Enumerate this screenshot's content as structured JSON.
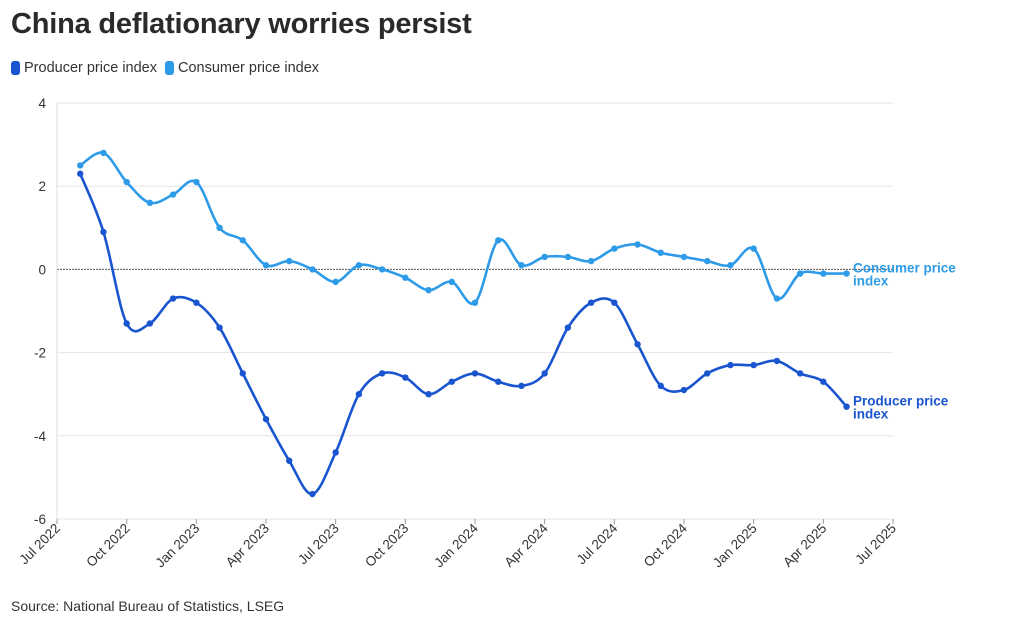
{
  "title": "China deflationary worries persist",
  "legend": [
    {
      "label": "Producer price index",
      "color": "#1a55d0"
    },
    {
      "label": "Consumer price index",
      "color": "#2e9be8"
    }
  ],
  "source": "Source: National Bureau of Statistics, LSEG",
  "chart_data": {
    "type": "line",
    "title": "China deflationary worries persist",
    "xlabel": "",
    "ylabel": "",
    "ylim": [
      -6,
      4
    ],
    "yticks": [
      4,
      2,
      0,
      -2,
      -4,
      -6
    ],
    "xlim": [
      "2022-07",
      "2025-07"
    ],
    "xticks": [
      "Jul 2022",
      "Oct 2022",
      "Jan 2023",
      "Apr 2023",
      "Jul 2023",
      "Oct 2023",
      "Jan 2024",
      "Apr 2024",
      "Jul 2024",
      "Oct 2024",
      "Jan 2025",
      "Apr 2025",
      "Jul 2025"
    ],
    "grid": true,
    "legend_position": "top-left",
    "x": [
      "2022-08",
      "2022-09",
      "2022-10",
      "2022-11",
      "2022-12",
      "2023-01",
      "2023-02",
      "2023-03",
      "2023-04",
      "2023-05",
      "2023-06",
      "2023-07",
      "2023-08",
      "2023-09",
      "2023-10",
      "2023-11",
      "2023-12",
      "2024-01",
      "2024-02",
      "2024-03",
      "2024-04",
      "2024-05",
      "2024-06",
      "2024-07",
      "2024-08",
      "2024-09",
      "2024-10",
      "2024-11",
      "2024-12",
      "2025-01",
      "2025-02",
      "2025-03",
      "2025-04",
      "2025-05"
    ],
    "series": [
      {
        "name": "Producer price index",
        "end_label": [
          "Producer price",
          "index"
        ],
        "color": "#1a55d0",
        "values": [
          2.3,
          0.9,
          -1.3,
          -1.3,
          -0.7,
          -0.8,
          -1.4,
          -2.5,
          -3.6,
          -4.6,
          -5.4,
          -4.4,
          -3.0,
          -2.5,
          -2.6,
          -3.0,
          -2.7,
          -2.5,
          -2.7,
          -2.8,
          -2.5,
          -1.4,
          -0.8,
          -0.8,
          -1.8,
          -2.8,
          -2.9,
          -2.5,
          -2.3,
          -2.3,
          -2.2,
          -2.5,
          -2.7,
          -3.3
        ]
      },
      {
        "name": "Consumer price index",
        "end_label": [
          "Consumer price",
          "index"
        ],
        "color": "#2e9be8",
        "values": [
          2.5,
          2.8,
          2.1,
          1.6,
          1.8,
          2.1,
          1.0,
          0.7,
          0.1,
          0.2,
          0.0,
          -0.3,
          0.1,
          0.0,
          -0.2,
          -0.5,
          -0.3,
          -0.8,
          0.7,
          0.1,
          0.3,
          0.3,
          0.2,
          0.5,
          0.6,
          0.4,
          0.3,
          0.2,
          0.1,
          0.5,
          -0.7,
          -0.1,
          -0.1,
          -0.1
        ]
      }
    ]
  }
}
